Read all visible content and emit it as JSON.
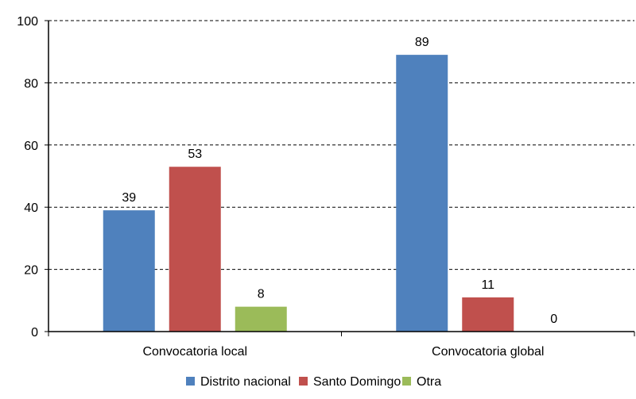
{
  "chart_data": {
    "type": "bar",
    "categories": [
      "Convocatoria local",
      "Convocatoria global"
    ],
    "series": [
      {
        "name": "Distrito nacional",
        "color": "#4F81BD",
        "values": [
          39,
          89
        ]
      },
      {
        "name": "Santo Domingo",
        "color": "#C0504D",
        "values": [
          53,
          11
        ]
      },
      {
        "name": "Otra",
        "color": "#9BBB59",
        "values": [
          8,
          0
        ]
      }
    ],
    "ylim": [
      0,
      100
    ],
    "yticks": [
      0,
      20,
      40,
      60,
      80,
      100
    ],
    "grid": true,
    "grid_style": "dashed",
    "legend_position": "bottom",
    "data_labels": true
  }
}
